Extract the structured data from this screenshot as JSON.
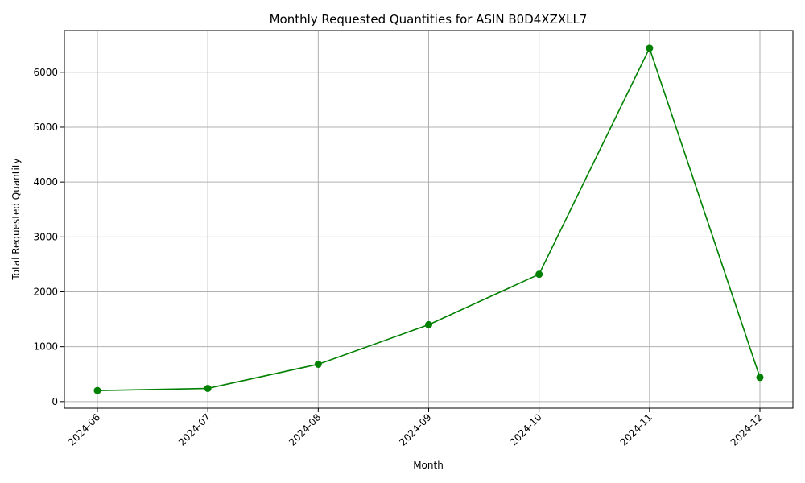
{
  "chart_data": {
    "type": "line",
    "title": "Monthly Requested Quantities for ASIN B0D4XZXLL7",
    "xlabel": "Month",
    "ylabel": "Total Requested Quantity",
    "categories": [
      "2024-06",
      "2024-07",
      "2024-08",
      "2024-09",
      "2024-10",
      "2024-11",
      "2024-12"
    ],
    "series": [
      {
        "values": [
          200,
          240,
          680,
          1400,
          2320,
          6440,
          440
        ],
        "color": "#008000"
      }
    ],
    "yticks": [
      0,
      1000,
      2000,
      3000,
      4000,
      5000,
      6000
    ],
    "ylim": [
      -120,
      6760
    ],
    "grid": true,
    "marker": "circle"
  }
}
